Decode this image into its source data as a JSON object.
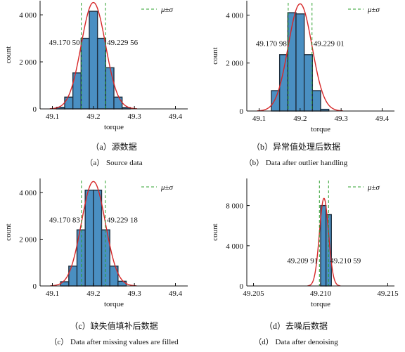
{
  "colors": {
    "bar_fill": "#4a8fc2",
    "bar_edge": "#1f2f3f",
    "fit_line": "#d62728",
    "sigma_line": "#2ca02c"
  },
  "chart_data": [
    {
      "type": "bar",
      "panel": "a",
      "xlabel": "torque",
      "ylabel": "count",
      "xlim": [
        49.07,
        49.43
      ],
      "ylim": [
        0,
        4600
      ],
      "xticks": [
        49.1,
        49.2,
        49.3,
        49.4
      ],
      "xtick_labels": [
        "49.1",
        "49.2",
        "49.3",
        "49.4"
      ],
      "yticks": [
        0,
        2000,
        4000
      ],
      "ytick_labels": [
        "0",
        "2 000",
        "4 000"
      ],
      "bin_width": 0.02,
      "bin_centers": [
        49.12,
        49.14,
        49.16,
        49.18,
        49.2,
        49.22,
        49.24,
        49.26,
        49.28
      ],
      "values": [
        70,
        500,
        1530,
        3000,
        4150,
        3000,
        1750,
        500,
        60
      ],
      "mean": 49.2,
      "sigma_lines": [
        49.1705,
        49.22956
      ],
      "sigma_labels": [
        "49.170 50",
        "49.229 56"
      ],
      "legend": "μ±σ",
      "legend_position": "top-right",
      "caption_cn": "（a）源数据",
      "caption_en": "（a） Source data"
    },
    {
      "type": "bar",
      "panel": "b",
      "xlabel": "torque",
      "ylabel": "count",
      "xlim": [
        49.07,
        49.43
      ],
      "ylim": [
        0,
        4600
      ],
      "xticks": [
        49.1,
        49.2,
        49.3,
        49.4
      ],
      "xtick_labels": [
        "49.1",
        "49.2",
        "49.3",
        "49.4"
      ],
      "yticks": [
        0,
        2000,
        4000
      ],
      "ytick_labels": [
        "0",
        "2 000",
        "4 000"
      ],
      "bin_width": 0.02,
      "bin_centers": [
        49.14,
        49.16,
        49.18,
        49.2,
        49.22,
        49.24,
        49.26
      ],
      "values": [
        850,
        2350,
        4100,
        4050,
        2350,
        850,
        70
      ],
      "mean": 49.2,
      "sigma_lines": [
        49.17098,
        49.22901
      ],
      "sigma_labels": [
        "49.170 98",
        "49.229 01"
      ],
      "legend": "μ±σ",
      "legend_position": "top-right",
      "caption_cn": "（b）异常值处理后数据",
      "caption_en": "（b） Data after outlier handling"
    },
    {
      "type": "bar",
      "panel": "c",
      "xlabel": "torque",
      "ylabel": "count",
      "xlim": [
        49.07,
        49.43
      ],
      "ylim": [
        0,
        4600
      ],
      "xticks": [
        49.1,
        49.2,
        49.3,
        49.4
      ],
      "xtick_labels": [
        "49.1",
        "49.2",
        "49.3",
        "49.4"
      ],
      "yticks": [
        0,
        2000,
        4000
      ],
      "ytick_labels": [
        "0",
        "2 000",
        "4 000"
      ],
      "bin_width": 0.02,
      "bin_centers": [
        49.13,
        49.15,
        49.17,
        49.19,
        49.21,
        49.23,
        49.25,
        49.27
      ],
      "values": [
        180,
        850,
        2400,
        4100,
        4100,
        2400,
        850,
        200
      ],
      "mean": 49.2,
      "sigma_lines": [
        49.17083,
        49.22918
      ],
      "sigma_labels": [
        "49.170 83",
        "49.229 18"
      ],
      "legend": "μ±σ",
      "legend_position": "top-right",
      "caption_cn": "（c）缺失值填补后数据",
      "caption_en": "（c） Data after missing values are filled"
    },
    {
      "type": "bar",
      "panel": "d",
      "xlabel": "torque",
      "ylabel": "count",
      "xlim": [
        49.2045,
        49.2155
      ],
      "ylim": [
        0,
        10700
      ],
      "xticks": [
        49.205,
        49.21,
        49.215
      ],
      "xtick_labels": [
        "49.205",
        "49.210",
        "49.215"
      ],
      "yticks": [
        0,
        4000,
        8000
      ],
      "ytick_labels": [
        "0",
        "4 000",
        "8 000"
      ],
      "bin_width": 0.0004,
      "bin_centers": [
        49.2102,
        49.2106
      ],
      "values": [
        8000,
        7100
      ],
      "mean": 49.21025,
      "sigma_lines": [
        49.20991,
        49.21059
      ],
      "sigma_labels": [
        "49.209 91",
        "49.210 59"
      ],
      "legend": "μ±σ",
      "legend_position": "top-right",
      "caption_cn": "（d）去噪后数据",
      "caption_en": "（d） Data after denoising"
    }
  ]
}
